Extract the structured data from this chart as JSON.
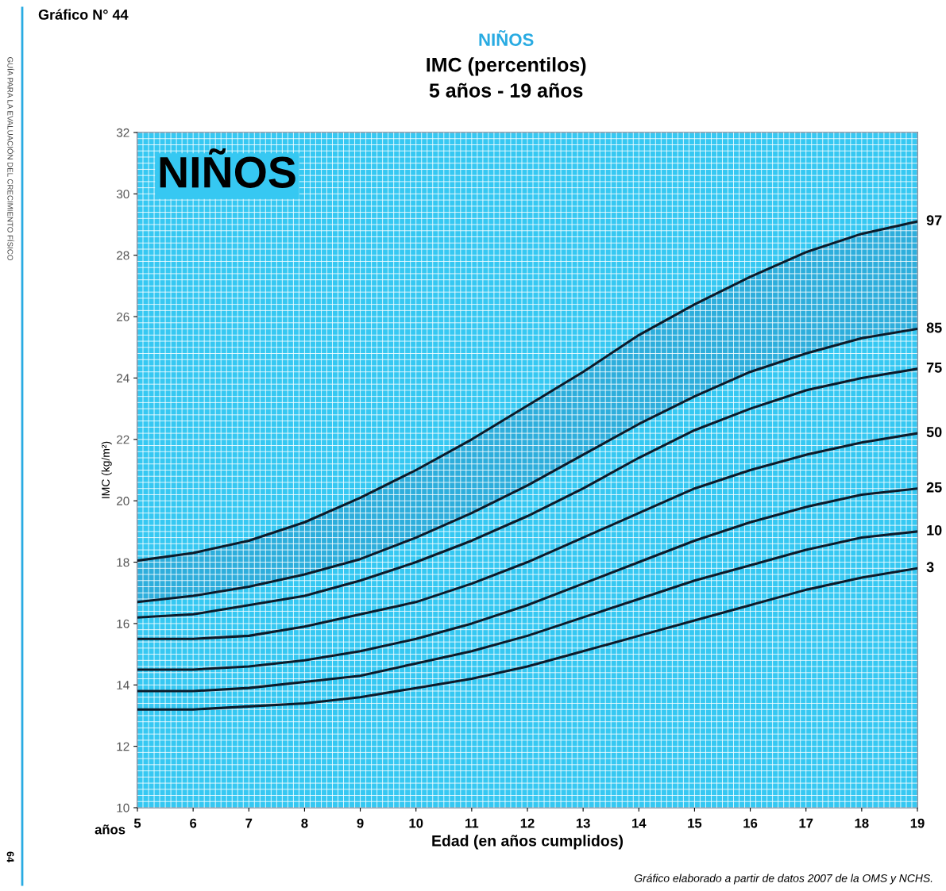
{
  "chart_data": {
    "type": "line",
    "title": "NIÑOS",
    "subtitle": "IMC (percentilos)\n5 años - 19 años",
    "xlabel": "Edad (en años cumplidos)",
    "ylabel": "IMC (kg/m²)",
    "x": [
      5,
      6,
      7,
      8,
      9,
      10,
      11,
      12,
      13,
      14,
      15,
      16,
      17,
      18,
      19
    ],
    "series": [
      {
        "name": "97",
        "color": "#0d1b2a",
        "values": [
          18.05,
          18.3,
          18.7,
          19.3,
          20.1,
          21.0,
          22.0,
          23.1,
          24.2,
          25.4,
          26.4,
          27.3,
          28.1,
          28.7,
          29.1
        ],
        "lower": [
          16.7,
          16.9,
          17.2,
          17.6,
          18.1,
          18.8,
          19.6,
          20.5,
          21.5,
          22.5,
          23.4,
          24.2,
          24.8,
          25.3,
          25.6
        ],
        "upper": [
          18.05,
          18.3,
          18.7,
          19.3,
          20.1,
          21.0,
          22.0,
          23.1,
          24.2,
          25.4,
          26.4,
          27.3,
          28.1,
          28.7,
          29.1
        ]
      },
      {
        "name": "85",
        "color": "#0d1b2a",
        "values": [
          16.7,
          16.9,
          17.2,
          17.6,
          18.1,
          18.8,
          19.6,
          20.5,
          21.5,
          22.5,
          23.4,
          24.2,
          24.8,
          25.3,
          25.6
        ]
      },
      {
        "name": "75",
        "color": "#0d1b2a",
        "values": [
          16.2,
          16.3,
          16.6,
          16.9,
          17.4,
          18.0,
          18.7,
          19.5,
          20.4,
          21.4,
          22.3,
          23.0,
          23.6,
          24.0,
          24.3
        ]
      },
      {
        "name": "50",
        "color": "#0d1b2a",
        "values": [
          15.5,
          15.5,
          15.6,
          15.9,
          16.3,
          16.7,
          17.3,
          18.0,
          18.8,
          19.6,
          20.4,
          21.0,
          21.5,
          21.9,
          22.2
        ]
      },
      {
        "name": "25",
        "color": "#0d1b2a",
        "values": [
          14.5,
          14.5,
          14.6,
          14.8,
          15.1,
          15.5,
          16.0,
          16.6,
          17.3,
          18.0,
          18.7,
          19.3,
          19.8,
          20.2,
          20.4
        ]
      },
      {
        "name": "10",
        "color": "#0d1b2a",
        "values": [
          13.8,
          13.8,
          13.9,
          14.1,
          14.3,
          14.7,
          15.1,
          15.6,
          16.2,
          16.8,
          17.4,
          17.9,
          18.4,
          18.8,
          19.0
        ]
      },
      {
        "name": "3",
        "color": "#0d1b2a",
        "values": [
          13.2,
          13.2,
          13.3,
          13.4,
          13.6,
          13.9,
          14.2,
          14.6,
          15.1,
          15.6,
          16.1,
          16.6,
          17.1,
          17.5,
          17.8
        ]
      }
    ],
    "xlim": [
      5,
      19
    ],
    "ylim": [
      10,
      32
    ],
    "xticks": [
      5,
      6,
      7,
      8,
      9,
      10,
      11,
      12,
      13,
      14,
      15,
      16,
      17,
      18,
      19
    ],
    "yticks": [
      10,
      12,
      14,
      16,
      18,
      20,
      22,
      24,
      26,
      28,
      30,
      32
    ],
    "grid": true,
    "marker": "none",
    "line_style": "solid",
    "legend": false,
    "annotations": [
      "Gráfico N° 44",
      "NIÑOS",
      "años",
      "Gráfico elaborado a partir de datos 2007 de la OMS y NCHS.",
      "GUÍA PARA LA EVALUACIÓN DEL CRECIMIENTO FÍSICO",
      "64"
    ]
  }
}
